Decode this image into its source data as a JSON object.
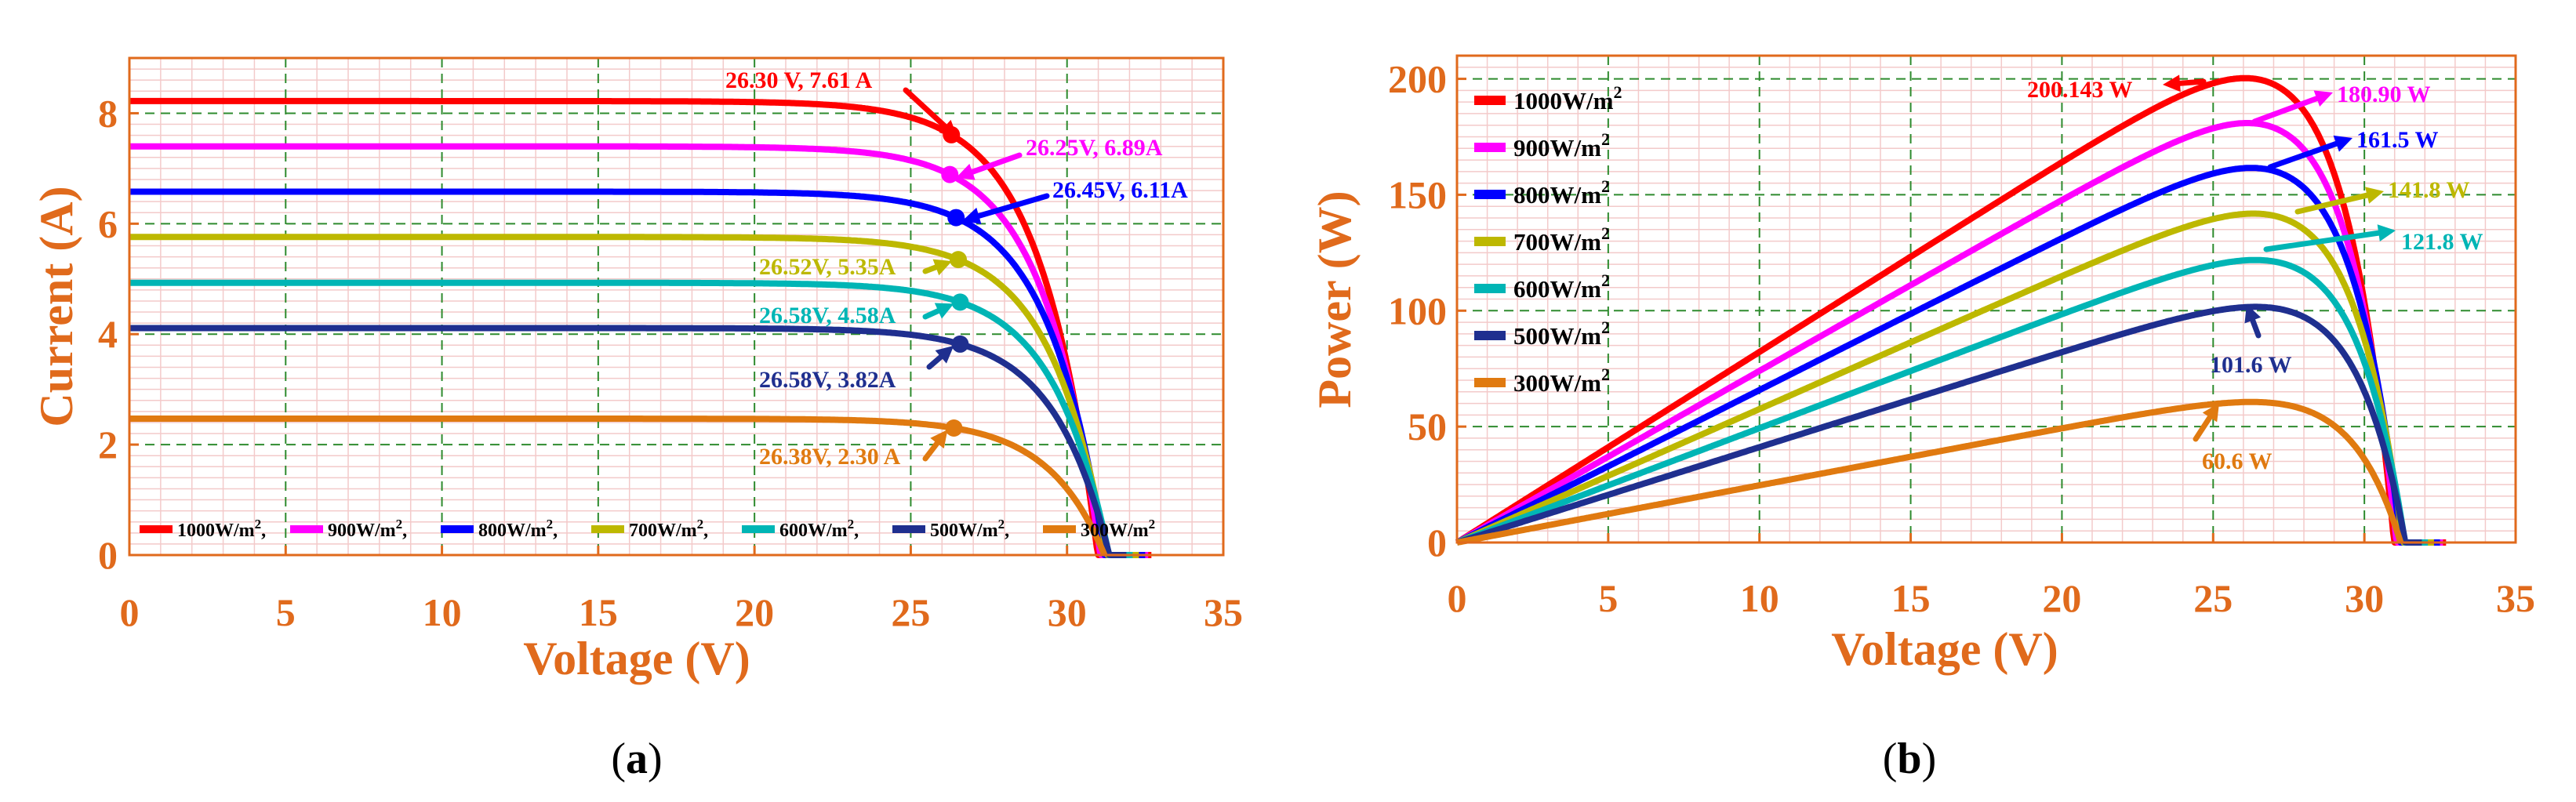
{
  "chart_data": [
    {
      "type": "line",
      "title": "",
      "xlabel": "Voltage (V)",
      "ylabel": "Current (A)",
      "xlim": [
        0,
        35
      ],
      "ylim": [
        0,
        9
      ],
      "xticks": [
        "0",
        "5",
        "10",
        "15",
        "20",
        "25",
        "30",
        "35"
      ],
      "yticks": [
        "0",
        "2",
        "4",
        "6",
        "8"
      ],
      "caption_letter": "a",
      "caption_open": "(",
      "caption_close": ")",
      "grid": true,
      "legend_position": "bottom, single row",
      "series": [
        {
          "name": "1000W/m",
          "sup": "2",
          "sep": ",",
          "color": "#ff0000",
          "isc": 8.22,
          "voc": 32.7,
          "mpp": {
            "v": 26.3,
            "i": 7.61
          },
          "label": "26.30 V, 7.61 A"
        },
        {
          "name": "900W/m",
          "sup": "2",
          "sep": ",",
          "color": "#ff00ff",
          "isc": 7.4,
          "voc": 32.6,
          "mpp": {
            "v": 26.25,
            "i": 6.89
          },
          "label": "26.25V, 6.89A"
        },
        {
          "name": "800W/m",
          "sup": "2",
          "sep": ",",
          "color": "#0000ff",
          "isc": 6.58,
          "voc": 32.5,
          "mpp": {
            "v": 26.45,
            "i": 6.11
          },
          "label": "26.45V, 6.11A"
        },
        {
          "name": "700W/m",
          "sup": "2",
          "sep": ",",
          "color": "#bdb800",
          "isc": 5.76,
          "voc": 32.3,
          "mpp": {
            "v": 26.52,
            "i": 5.35
          },
          "label": "26.52V, 5.35A"
        },
        {
          "name": "600W/m",
          "sup": "2",
          "sep": ",",
          "color": "#00b5b5",
          "isc": 4.93,
          "voc": 32.1,
          "mpp": {
            "v": 26.58,
            "i": 4.58
          },
          "label": "26.58V, 4.58A"
        },
        {
          "name": "500W/m",
          "sup": "2",
          "sep": ",",
          "color": "#1f2f8f",
          "isc": 4.11,
          "voc": 31.9,
          "mpp": {
            "v": 26.58,
            "i": 3.82
          },
          "label": "26.58V, 3.82A"
        },
        {
          "name": "300W/m",
          "sup": "2",
          "sep": "",
          "color": "#e07a10",
          "isc": 2.47,
          "voc": 31.2,
          "mpp": {
            "v": 26.38,
            "i": 2.3
          },
          "label": "26.38V, 2.30 A"
        }
      ]
    },
    {
      "type": "line",
      "title": "",
      "xlabel": "Voltage (V)",
      "ylabel": "Power (W)",
      "xlim": [
        0,
        35
      ],
      "ylim": [
        0,
        210
      ],
      "xticks": [
        "0",
        "5",
        "10",
        "15",
        "20",
        "25",
        "30",
        "35"
      ],
      "yticks": [
        "0",
        "50",
        "100",
        "150",
        "200"
      ],
      "caption_letter": "b",
      "caption_open": "(",
      "caption_close": ")",
      "grid": true,
      "legend_position": "top-left, vertical",
      "series": [
        {
          "name": "1000W/m",
          "sup": "2",
          "color": "#ff0000",
          "pmax": 200.143,
          "vmp": 26.3,
          "voc": 32.7,
          "label": "200.143 W"
        },
        {
          "name": "900W/m",
          "sup": "2",
          "color": "#ff00ff",
          "pmax": 180.9,
          "vmp": 26.25,
          "voc": 32.6,
          "label": "180.90 W"
        },
        {
          "name": "800W/m",
          "sup": "2",
          "color": "#0000ff",
          "pmax": 161.5,
          "vmp": 26.45,
          "voc": 32.5,
          "label": "161.5 W"
        },
        {
          "name": "700W/m",
          "sup": "2",
          "color": "#bdb800",
          "pmax": 141.8,
          "vmp": 26.52,
          "voc": 32.3,
          "label": "141.8 W"
        },
        {
          "name": "600W/m",
          "sup": "2",
          "color": "#00b5b5",
          "pmax": 121.8,
          "vmp": 26.58,
          "voc": 32.1,
          "label": "121.8 W"
        },
        {
          "name": "500W/m",
          "sup": "2",
          "color": "#1f2f8f",
          "pmax": 101.6,
          "vmp": 26.58,
          "voc": 31.9,
          "label": "101.6 W"
        },
        {
          "name": "300W/m",
          "sup": "2",
          "color": "#e07a10",
          "pmax": 60.6,
          "vmp": 26.38,
          "voc": 31.2,
          "label": "60.6 W"
        }
      ]
    }
  ],
  "colors": {
    "axis_text": "#e06a1c",
    "frame": "#e06a1c",
    "grid_major": "#2e8b2e",
    "grid_minor": "#f3caca",
    "background": "#ffffff"
  }
}
